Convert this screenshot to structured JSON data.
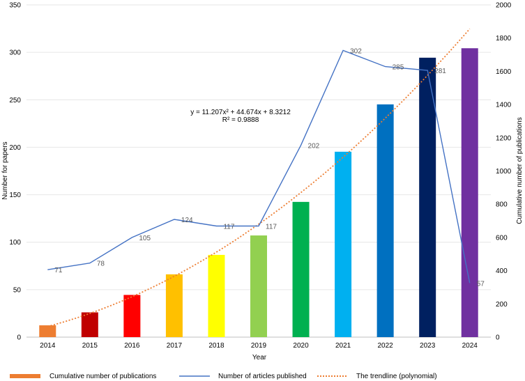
{
  "chart_data": {
    "type": "bar",
    "xlabel": "Year",
    "ylabel_left": "Number for papers",
    "ylabel_right": "Cumulative number of publications",
    "ylim_left": [
      0,
      350
    ],
    "ylim_right": [
      0,
      2000
    ],
    "yticks_left": [
      0,
      50,
      100,
      150,
      200,
      250,
      300,
      350
    ],
    "yticks_right": [
      0,
      200,
      400,
      600,
      800,
      1000,
      1200,
      1400,
      1600,
      1800,
      2000
    ],
    "grid": true,
    "categories": [
      "2014",
      "2015",
      "2016",
      "2017",
      "2018",
      "2019",
      "2020",
      "2021",
      "2022",
      "2023",
      "2024"
    ],
    "series": [
      {
        "name": "Cumulative number of publications",
        "type": "bar",
        "axis": "right",
        "values": [
          71,
          149,
          254,
          378,
          495,
          612,
          814,
          1116,
          1401,
          1682,
          1739
        ],
        "colors": [
          "#ed7d31",
          "#c00000",
          "#ff0000",
          "#ffc000",
          "#ffff00",
          "#92d050",
          "#00b050",
          "#00b0f0",
          "#0070c0",
          "#002060",
          "#7030a0"
        ]
      },
      {
        "name": "Number of articles published",
        "type": "line",
        "axis": "left",
        "color": "#4472c4",
        "values": [
          71,
          78,
          105,
          124,
          117,
          117,
          202,
          302,
          285,
          281,
          57
        ]
      },
      {
        "name": "The trendline (polynomial)",
        "type": "trendline",
        "axis": "right",
        "color": "#ed7d31",
        "coefficients": [
          11.207,
          44.674,
          8.3212
        ]
      }
    ],
    "annotation": {
      "equation": "y = 11.207x² + 44.674x + 8.3212",
      "r_squared": "R² = 0.9888"
    },
    "legend_position": "bottom"
  }
}
